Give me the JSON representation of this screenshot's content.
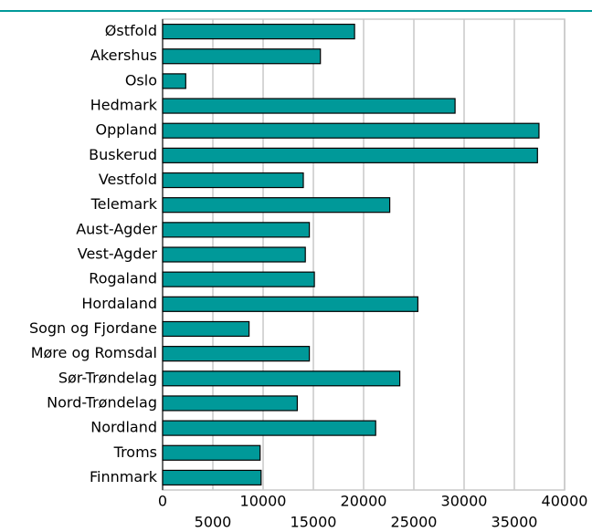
{
  "chart_data": {
    "type": "hbar",
    "color": "#009999",
    "categories": [
      "Østfold",
      "Akershus",
      "Oslo",
      "Hedmark",
      "Oppland",
      "Buskerud",
      "Vestfold",
      "Telemark",
      "Aust-Agder",
      "Vest-Agder",
      "Rogaland",
      "Hordaland",
      "Sogn og Fjordane",
      "Møre og Romsdal",
      "Sør-Trøndelag",
      "Nord-Trøndelag",
      "Nordland",
      "Troms",
      "Finnmark"
    ],
    "values": [
      19100,
      15700,
      2300,
      29100,
      37450,
      37300,
      14000,
      22600,
      14600,
      14200,
      15100,
      25400,
      8600,
      14600,
      23600,
      13400,
      21200,
      9700,
      9800
    ],
    "xlim": [
      0,
      40000
    ],
    "xticks": [
      0,
      5000,
      10000,
      15000,
      20000,
      25000,
      30000,
      35000,
      40000
    ],
    "grid": true
  }
}
